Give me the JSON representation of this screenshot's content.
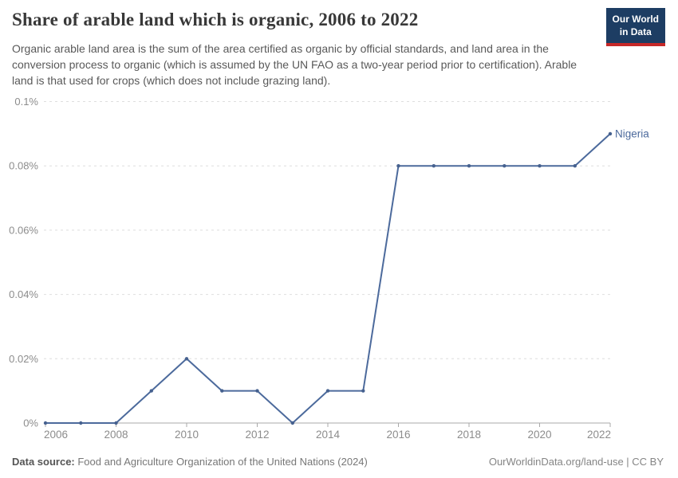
{
  "header": {
    "title": "Share of arable land which is organic, 2006 to 2022",
    "subtitle": "Organic arable land area is the sum of the area certified as organic by official standards, and land area in the conversion process to organic (which is assumed by the UN FAO as a two-year period prior to certification). Arable land is that used for crops (which does not include grazing land).",
    "logo": {
      "line1": "Our World",
      "line2": "in Data"
    }
  },
  "colors": {
    "series_line": "#4C6A9C",
    "series_marker": "#46618f",
    "axis": "#a8a8a8",
    "gridline": "#dedede",
    "tick_label": "#8c8c8c",
    "logo_bg": "#1d3d63",
    "logo_stripe": "#c62828"
  },
  "chart_data": {
    "type": "line",
    "title": "Share of arable land which is organic, 2006 to 2022",
    "xlabel": "",
    "ylabel": "",
    "xlim": [
      2006,
      2022
    ],
    "ylim": [
      0,
      0.1
    ],
    "grid": "horizontal-dashed",
    "legend_position": "end-of-line-label",
    "x": [
      2006,
      2007,
      2008,
      2009,
      2010,
      2011,
      2012,
      2013,
      2014,
      2015,
      2016,
      2017,
      2018,
      2019,
      2020,
      2021,
      2022
    ],
    "series": [
      {
        "name": "Nigeria",
        "values": [
          0,
          0,
          0,
          0.01,
          0.02,
          0.01,
          0.01,
          0,
          0.01,
          0.01,
          0.08,
          0.08,
          0.08,
          0.08,
          0.08,
          0.08,
          0.09
        ]
      }
    ],
    "x_ticks": [
      {
        "value": 2006,
        "label": "2006"
      },
      {
        "value": 2008,
        "label": "2008"
      },
      {
        "value": 2010,
        "label": "2010"
      },
      {
        "value": 2012,
        "label": "2012"
      },
      {
        "value": 2014,
        "label": "2014"
      },
      {
        "value": 2016,
        "label": "2016"
      },
      {
        "value": 2018,
        "label": "2018"
      },
      {
        "value": 2020,
        "label": "2020"
      },
      {
        "value": 2022,
        "label": "2022"
      }
    ],
    "y_ticks": [
      {
        "value": 0,
        "label": "0%"
      },
      {
        "value": 0.02,
        "label": "0.02%"
      },
      {
        "value": 0.04,
        "label": "0.04%"
      },
      {
        "value": 0.06,
        "label": "0.06%"
      },
      {
        "value": 0.08,
        "label": "0.08%"
      },
      {
        "value": 0.1,
        "label": "0.1%"
      }
    ]
  },
  "footer": {
    "source_label": "Data source:",
    "source_value": " Food and Agriculture Organization of the United Nations (2024)",
    "link": "OurWorldinData.org/land-use | CC BY"
  }
}
